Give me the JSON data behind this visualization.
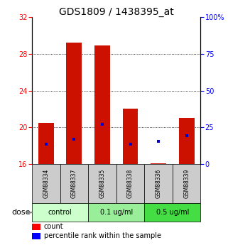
{
  "title": "GDS1809 / 1438395_at",
  "samples": [
    "GSM88334",
    "GSM88337",
    "GSM88335",
    "GSM88338",
    "GSM88336",
    "GSM88339"
  ],
  "groups": [
    "control",
    "control",
    "0.1 ug/ml",
    "0.1 ug/ml",
    "0.5 ug/ml",
    "0.5 ug/ml"
  ],
  "group_spans": [
    {
      "label": "control",
      "start": 0,
      "end": 1,
      "color": "#ccffcc"
    },
    {
      "label": "0.1 ug/ml",
      "start": 2,
      "end": 3,
      "color": "#99ee99"
    },
    {
      "label": "0.5 ug/ml",
      "start": 4,
      "end": 5,
      "color": "#44dd44"
    }
  ],
  "sample_bg": {
    "control": "#cccccc",
    "0.1 ug/ml": "#cccccc",
    "0.5 ug/ml": "#cccccc"
  },
  "bar_bottom": 16,
  "bar_tops": [
    20.5,
    29.2,
    28.9,
    22.0,
    16.1,
    21.0
  ],
  "blue_dots_left": [
    18.2,
    18.7,
    20.3,
    18.2,
    18.5,
    19.1
  ],
  "ylim_left": [
    16,
    32
  ],
  "ylim_right": [
    0,
    100
  ],
  "yticks_left": [
    16,
    20,
    24,
    28,
    32
  ],
  "yticks_right": [
    0,
    25,
    50,
    75,
    100
  ],
  "hgrid_at": [
    20,
    24,
    28
  ],
  "bar_color": "#cc1100",
  "dot_color": "#0000cc",
  "title_fontsize": 10,
  "tick_fontsize": 7,
  "sample_fontsize": 5.5,
  "group_fontsize": 7,
  "legend_fontsize": 7,
  "dose_fontsize": 8,
  "bar_width": 0.55,
  "background_color": "#ffffff"
}
